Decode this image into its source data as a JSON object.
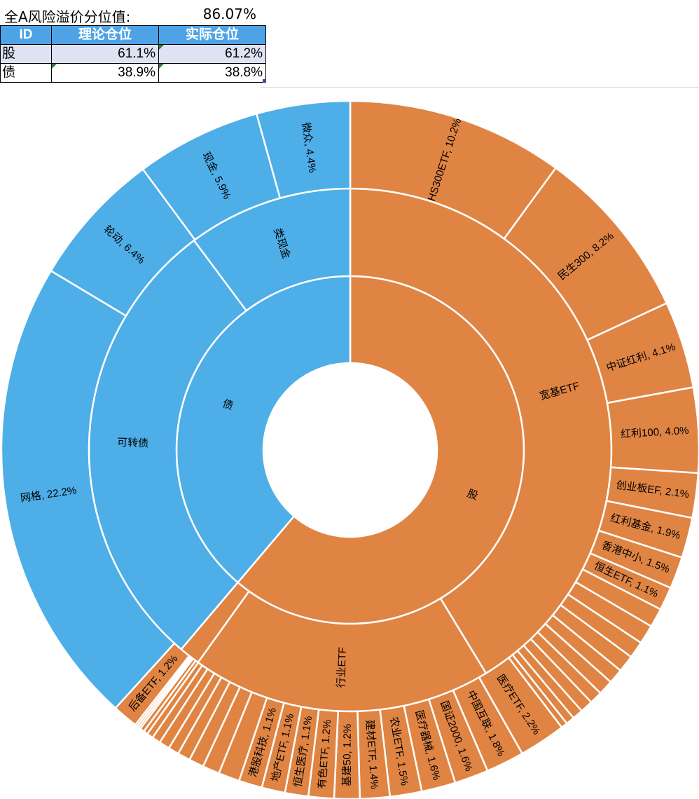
{
  "header": {
    "premium_label": "全A风险溢价分位值:",
    "premium_value": "86.07%"
  },
  "position_table": {
    "columns": [
      "ID",
      "理论仓位",
      "实际仓位"
    ],
    "rows": [
      {
        "id": "股",
        "theory": "61.1%",
        "actual": "61.2%"
      },
      {
        "id": "债",
        "theory": "38.9%",
        "actual": "38.8%"
      }
    ]
  },
  "colors": {
    "stock": "#e08443",
    "bond": "#4daee8",
    "header_blue": "#4ea3e6"
  },
  "chart_data": {
    "type": "sunburst",
    "unit": "%",
    "start_direction": "12 o'clock",
    "direction": "clockwise",
    "rings": {
      "inner": [
        {
          "name": "股",
          "value": 61.2
        },
        {
          "name": "债",
          "value": 38.8
        }
      ],
      "middle": [
        {
          "name": "宽基ETF",
          "parent": "股",
          "value": 41.3
        },
        {
          "name": "行业ETF",
          "parent": "股",
          "value": 18.6
        },
        {
          "name": "",
          "parent": "股",
          "value": 1.3
        },
        {
          "name": "可转债",
          "parent": "债",
          "value": 28.6
        },
        {
          "name": "类现金",
          "parent": "债",
          "value": 10.2
        }
      ],
      "outer": [
        {
          "name": "HS300ETF",
          "label": "HS300ETF, 10.2%",
          "value": 10.2,
          "parent": "宽基ETF"
        },
        {
          "name": "民生300",
          "label": "民生300, 8.2%",
          "value": 8.2,
          "parent": "宽基ETF"
        },
        {
          "name": "中证红利",
          "label": "中证红利, 4.1%",
          "value": 4.1,
          "parent": "宽基ETF"
        },
        {
          "name": "红利100",
          "label": "红利100, 4.0%",
          "value": 4.0,
          "parent": "宽基ETF"
        },
        {
          "name": "创业板EF",
          "label": "创业板EF, 2.1%",
          "value": 2.1,
          "parent": "宽基ETF"
        },
        {
          "name": "红利基金",
          "label": "红利基金, 1.9%",
          "value": 1.9,
          "parent": "宽基ETF"
        },
        {
          "name": "香港中小",
          "label": "香港中小, 1.5%",
          "value": 1.5,
          "parent": "宽基ETF"
        },
        {
          "name": "恒生ETF",
          "label": "恒生ETF, 1.1%",
          "value": 1.1,
          "parent": "宽基ETF"
        },
        {
          "name": "",
          "label": "",
          "value": 0.9,
          "parent": "宽基ETF"
        },
        {
          "name": "",
          "label": "",
          "value": 0.9,
          "parent": "宽基ETF"
        },
        {
          "name": "",
          "label": "",
          "value": 0.8,
          "parent": "宽基ETF"
        },
        {
          "name": "",
          "label": "",
          "value": 0.8,
          "parent": "宽基ETF"
        },
        {
          "name": "",
          "label": "",
          "value": 0.7,
          "parent": "宽基ETF"
        },
        {
          "name": "",
          "label": "",
          "value": 0.7,
          "parent": "宽基ETF"
        },
        {
          "name": "",
          "label": "",
          "value": 0.6,
          "parent": "宽基ETF"
        },
        {
          "name": "",
          "label": "",
          "value": 0.6,
          "parent": "宽基ETF"
        },
        {
          "name": "",
          "label": "",
          "value": 0.5,
          "parent": "宽基ETF"
        },
        {
          "name": "",
          "label": "",
          "value": 0.4,
          "parent": "宽基ETF"
        },
        {
          "name": "",
          "label": "",
          "value": 0.3,
          "parent": "宽基ETF"
        },
        {
          "name": "医疗ETF",
          "label": "医疗ETF, 2.2%",
          "value": 2.2,
          "parent": "行业ETF"
        },
        {
          "name": "中国互联",
          "label": "中国互联, 1.8%",
          "value": 1.8,
          "parent": "行业ETF"
        },
        {
          "name": "国证2000",
          "label": "国证2000, 1.6%",
          "value": 1.6,
          "parent": "行业ETF"
        },
        {
          "name": "医疗器械",
          "label": "医疗器械, 1.6%",
          "value": 1.6,
          "parent": "行业ETF"
        },
        {
          "name": "农业ETF",
          "label": "农业ETF, 1.5%",
          "value": 1.5,
          "parent": "行业ETF"
        },
        {
          "name": "建材ETF",
          "label": "建材ETF, 1.4%",
          "value": 1.4,
          "parent": "行业ETF"
        },
        {
          "name": "基建50",
          "label": "基建50, 1.2%",
          "value": 1.2,
          "parent": "行业ETF"
        },
        {
          "name": "有色ETF",
          "label": "有色ETF, 1.2%",
          "value": 1.2,
          "parent": "行业ETF"
        },
        {
          "name": "恒生医疗",
          "label": "恒生医疗, 1.1%",
          "value": 1.1,
          "parent": "行业ETF"
        },
        {
          "name": "地产ETF",
          "label": "地产ETF, 1.1%",
          "value": 1.1,
          "parent": "行业ETF"
        },
        {
          "name": "港股科技",
          "label": "港股科技, 1.1%",
          "value": 1.1,
          "parent": "行业ETF"
        },
        {
          "name": "",
          "label": "",
          "value": 1.0,
          "parent": "行业ETF"
        },
        {
          "name": "",
          "label": "",
          "value": 0.8,
          "parent": "行业ETF"
        },
        {
          "name": "",
          "label": "",
          "value": 0.7,
          "parent": "行业ETF"
        },
        {
          "name": "",
          "label": "",
          "value": 0.6,
          "parent": "行业ETF"
        },
        {
          "name": "",
          "label": "",
          "value": 0.5,
          "parent": "行业ETF"
        },
        {
          "name": "",
          "label": "",
          "value": 0.5,
          "parent": "行业ETF"
        },
        {
          "name": "",
          "label": "",
          "value": 0.4,
          "parent": "行业ETF"
        },
        {
          "name": "",
          "label": "",
          "value": 0.3,
          "parent": "行业ETF"
        },
        {
          "name": "",
          "label": "",
          "value": 0.2,
          "parent": "行业ETF"
        },
        {
          "name": "",
          "label": "",
          "value": 0.2,
          "parent": "行业ETF"
        },
        {
          "name": "",
          "label": "",
          "value": 0.1,
          "parent": "行业ETF"
        },
        {
          "name": "",
          "label": "",
          "value": 0.1,
          "parent": "行业ETF"
        },
        {
          "name": "",
          "label": "",
          "value": 0.1,
          "parent": "行业ETF"
        },
        {
          "name": "后备ETF",
          "label": "后备ETF, 1.2%",
          "value": 1.2,
          "parent": ""
        },
        {
          "name": "网格",
          "label": "网格, 22.2%",
          "value": 22.2,
          "parent": "可转债"
        },
        {
          "name": "轮动",
          "label": "轮动, 6.4%",
          "value": 6.4,
          "parent": "可转债"
        },
        {
          "name": "现金",
          "label": "现金, 5.9%",
          "value": 5.9,
          "parent": "类现金"
        },
        {
          "name": "微众",
          "label": "微众, 4.4%",
          "value": 4.4,
          "parent": "类现金"
        }
      ]
    }
  }
}
